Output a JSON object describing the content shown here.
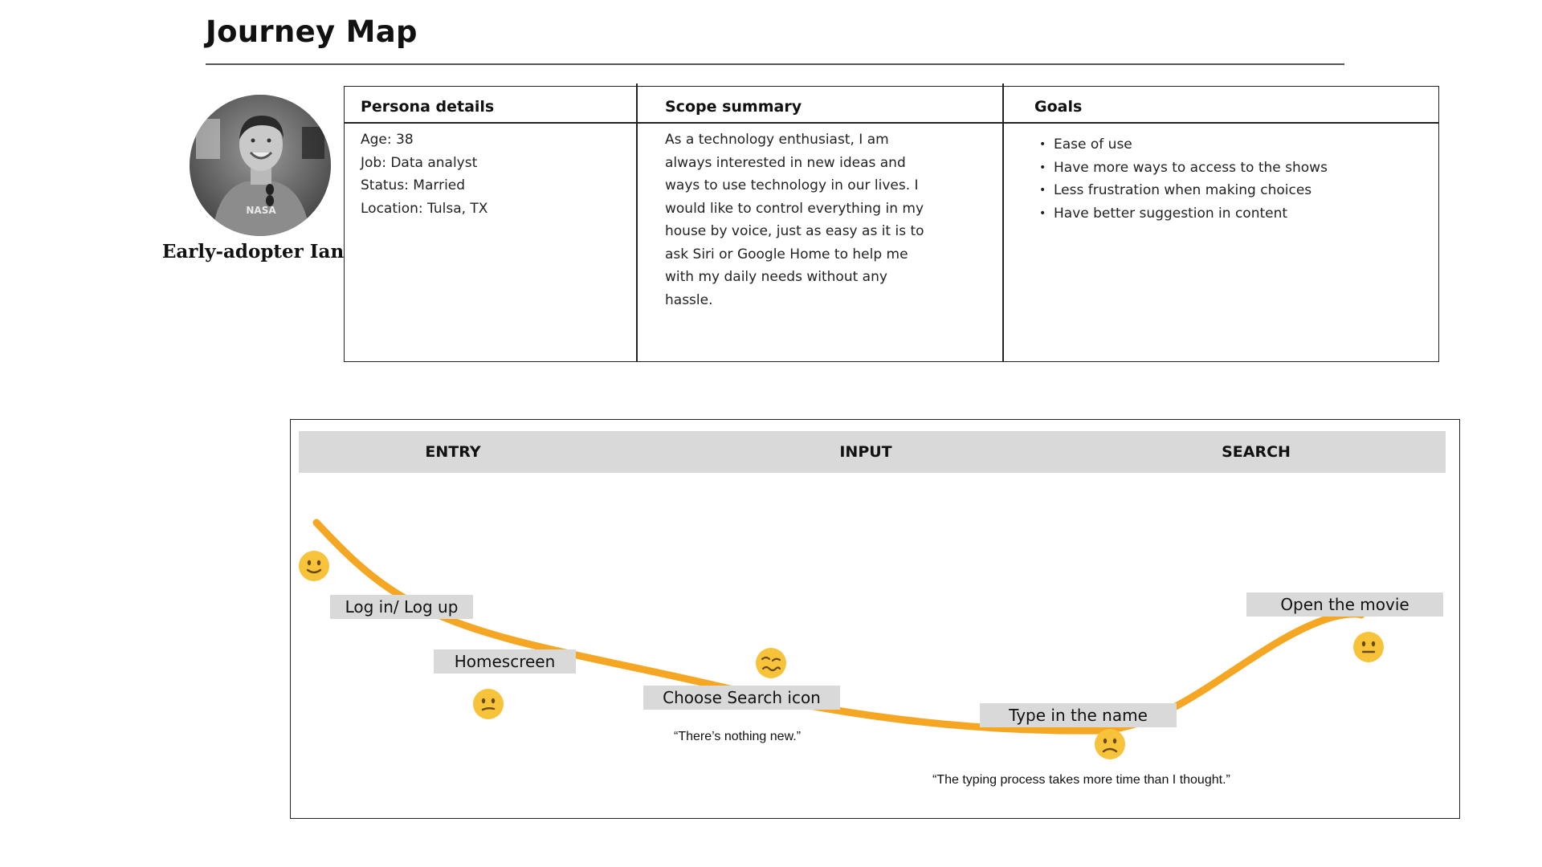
{
  "title": "Journey Map",
  "persona": {
    "name": "Early-adopter Ian",
    "avatar_shirt_text": "NASA"
  },
  "info": {
    "details_heading": "Persona details",
    "details": [
      "Age: 38",
      "Job: Data analyst",
      "Status: Married",
      "Location: Tulsa, TX"
    ],
    "scope_heading": "Scope summary",
    "scope_lines": [
      "As a technology enthusiast, I am",
      "always interested in new ideas and",
      "ways to use technology in our lives. I",
      "would like to control everything in my",
      "house by voice, just as easy as it is to",
      "ask Siri or Google Home to help me",
      "with my daily needs without any",
      "hassle."
    ],
    "goals_heading": "Goals",
    "goals": [
      "Ease of use",
      "Have more ways to access to the shows",
      "Less frustration when making choices",
      "Have better suggestion in content"
    ]
  },
  "phases": [
    "ENTRY",
    "INPUT",
    "SEARCH"
  ],
  "steps": [
    {
      "label": "Log in/ Log up",
      "emotion": "happy"
    },
    {
      "label": "Homescreen",
      "emotion": "neutral"
    },
    {
      "label": "Choose Search icon",
      "emotion": "woozy"
    },
    {
      "label": "Type in the name",
      "emotion": "sad"
    },
    {
      "label": "Open the movie",
      "emotion": "neutral"
    }
  ],
  "quotes": {
    "search_icon": "“There’s nothing new.”",
    "type_name": "“The typing process takes  more time than I thought.”"
  },
  "colors": {
    "curve": "#f5a623",
    "label_bg": "#d9d9d9",
    "face": "#f7c33a",
    "face_dark": "#6b4a12"
  },
  "icons": {
    "avatar": "person-photo-icon",
    "happy": "slightly-smiling-face-icon",
    "neutral": "neutral-face-icon",
    "woozy": "woozy-face-icon",
    "sad": "slightly-frowning-face-icon"
  }
}
